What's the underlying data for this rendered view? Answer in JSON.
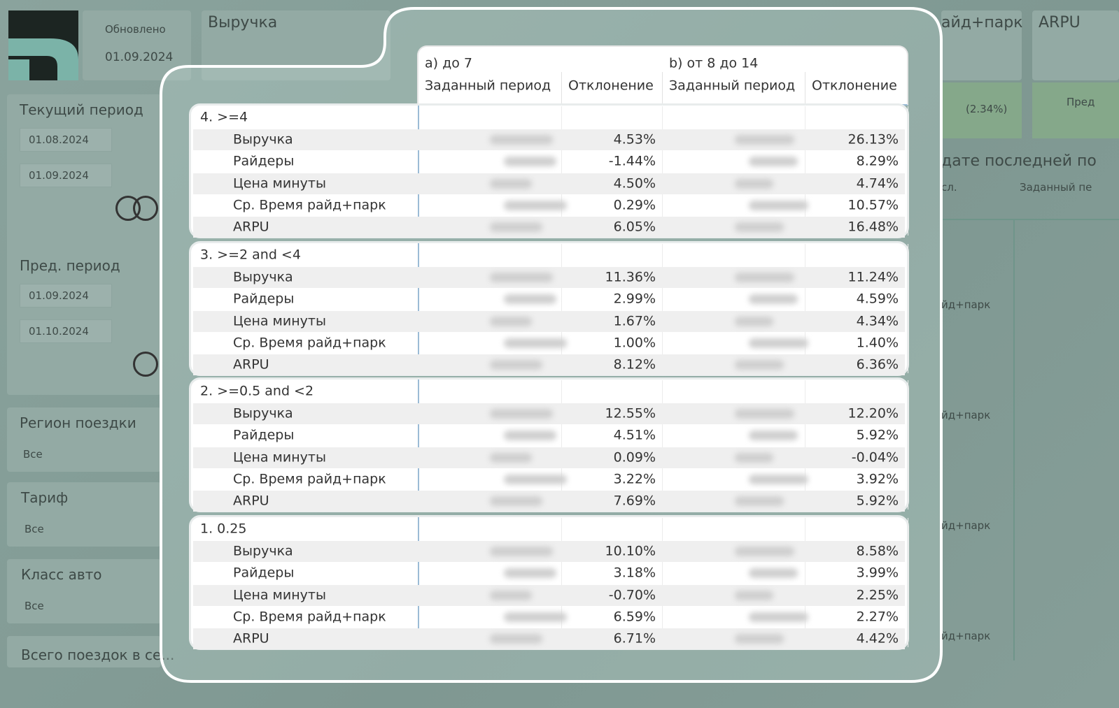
{
  "header": {
    "updated_label": "Обновлено",
    "updated_date": "01.09.2024",
    "revenue_title": "Выручка"
  },
  "filters": {
    "current_period": {
      "label": "Текущий период",
      "from": "01.08.2024",
      "to": "01.09.2024"
    },
    "previous_period": {
      "label": "Пред. период",
      "from": "01.09.2024",
      "to": "01.10.2024"
    },
    "region": {
      "label": "Регион поездки",
      "value": "Все"
    },
    "tariff": {
      "label": "Тариф",
      "value": "Все"
    },
    "car_class": {
      "label": "Класс авто",
      "value": "Все"
    },
    "total_trips": "Всего поездок в се..."
  },
  "right_panel": {
    "ride_park": "айд+парк",
    "arpu": "ARPU",
    "change": "(2.34%)",
    "prev": "Пред",
    "section_title": "дате последней по",
    "col_a": "сл.",
    "col_b": "Заданный пе",
    "rows": [
      "йд+парк",
      "йд+парк",
      "йд+парк",
      "йд+парк"
    ]
  },
  "table": {
    "column_groups": [
      "a) до 7",
      "b) от 8 до 14"
    ],
    "subcolumns": [
      "Заданный период",
      "Отклонение",
      "Заданный период",
      "Отклонение"
    ],
    "groups": [
      {
        "title": "4. >=4",
        "rows": [
          {
            "metric": "Выручка",
            "deviation_a": "4.53%",
            "deviation_b": "26.13%"
          },
          {
            "metric": "Райдеры",
            "deviation_a": "-1.44%",
            "deviation_b": "8.29%"
          },
          {
            "metric": "Цена минуты",
            "deviation_a": "4.50%",
            "deviation_b": "4.74%"
          },
          {
            "metric": "Ср. Время райд+парк",
            "deviation_a": "0.29%",
            "deviation_b": "10.57%"
          },
          {
            "metric": "ARPU",
            "deviation_a": "6.05%",
            "deviation_b": "16.48%"
          }
        ]
      },
      {
        "title": "3. >=2 and <4",
        "rows": [
          {
            "metric": "Выручка",
            "deviation_a": "11.36%",
            "deviation_b": "11.24%"
          },
          {
            "metric": "Райдеры",
            "deviation_a": "2.99%",
            "deviation_b": "4.59%"
          },
          {
            "metric": "Цена минуты",
            "deviation_a": "1.67%",
            "deviation_b": "4.34%"
          },
          {
            "metric": "Ср. Время райд+парк",
            "deviation_a": "1.00%",
            "deviation_b": "1.40%"
          },
          {
            "metric": "ARPU",
            "deviation_a": "8.12%",
            "deviation_b": "6.36%"
          }
        ]
      },
      {
        "title": "2. >=0.5 and <2",
        "rows": [
          {
            "metric": "Выручка",
            "deviation_a": "12.55%",
            "deviation_b": "12.20%"
          },
          {
            "metric": "Райдеры",
            "deviation_a": "4.51%",
            "deviation_b": "5.92%"
          },
          {
            "metric": "Цена минуты",
            "deviation_a": "0.09%",
            "deviation_b": "-0.04%"
          },
          {
            "metric": "Ср. Время райд+парк",
            "deviation_a": "3.22%",
            "deviation_b": "3.92%"
          },
          {
            "metric": "ARPU",
            "deviation_a": "7.69%",
            "deviation_b": "5.92%"
          }
        ]
      },
      {
        "title": "1. 0.25",
        "rows": [
          {
            "metric": "Выручка",
            "deviation_a": "10.10%",
            "deviation_b": "8.58%"
          },
          {
            "metric": "Райдеры",
            "deviation_a": "3.18%",
            "deviation_b": "3.99%"
          },
          {
            "metric": "Цена минуты",
            "deviation_a": "-0.70%",
            "deviation_b": "2.25%"
          },
          {
            "metric": "Ср. Время райд+парк",
            "deviation_a": "6.59%",
            "deviation_b": "2.27%"
          },
          {
            "metric": "ARPU",
            "deviation_a": "6.71%",
            "deviation_b": "4.42%"
          }
        ]
      }
    ]
  }
}
